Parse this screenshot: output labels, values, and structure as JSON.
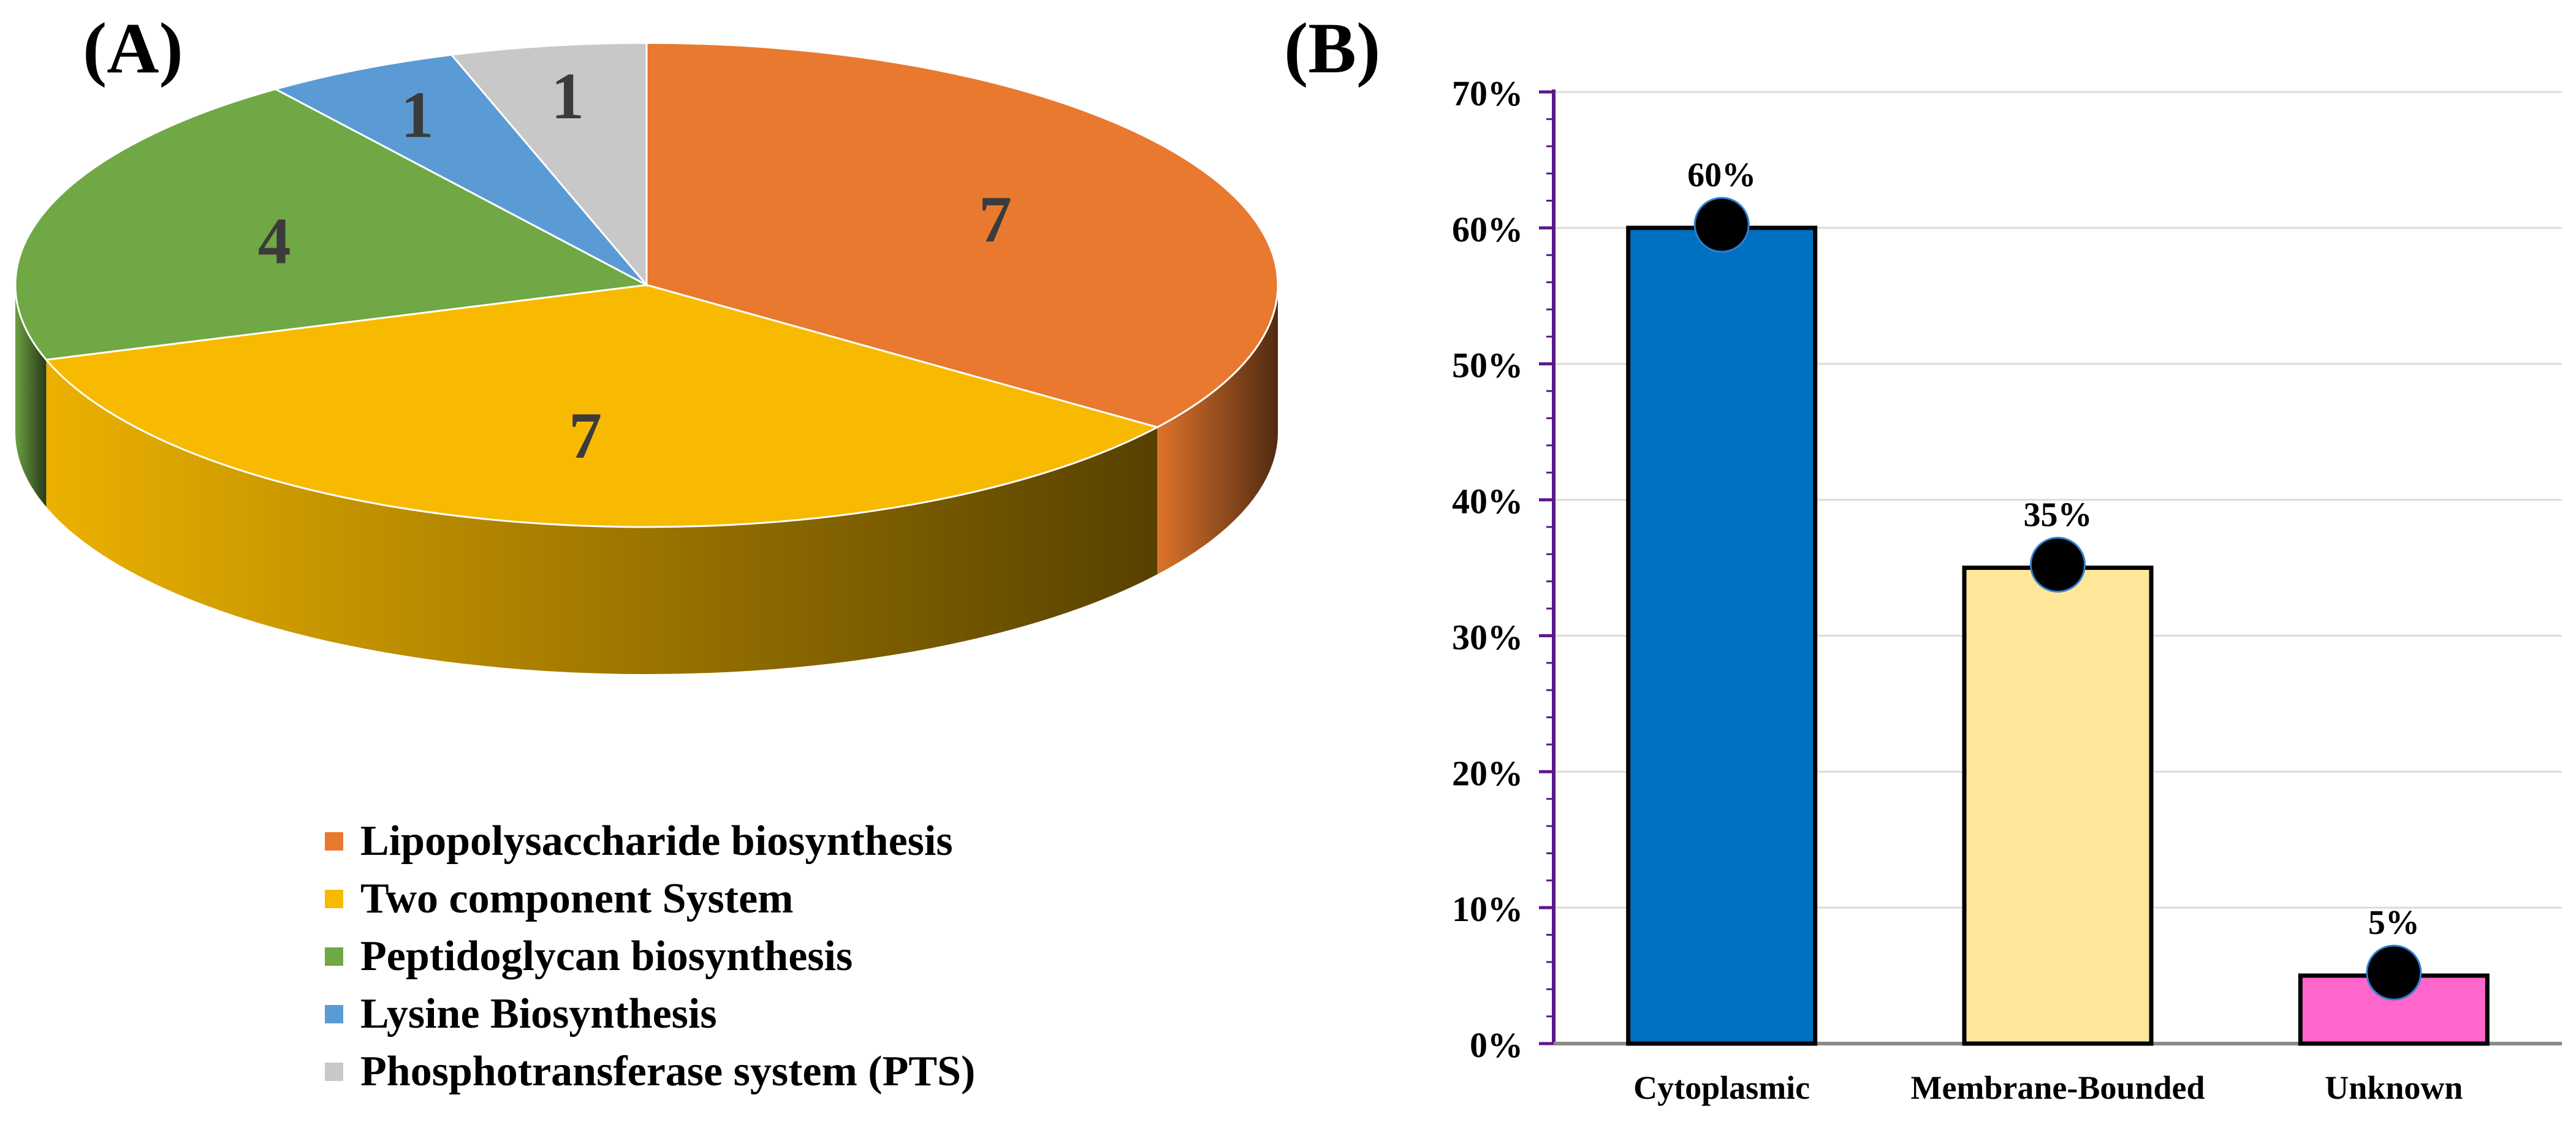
{
  "chart_data": [
    {
      "panel_label": "(A)",
      "type": "pie",
      "style": "3d",
      "slices": [
        {
          "label": "Lipopolysaccharide biosynthesis",
          "value": 7,
          "display": "7",
          "color": "#E8792F"
        },
        {
          "label": "Two component System",
          "value": 7,
          "display": "7",
          "color": "#F8BA00"
        },
        {
          "label": "Peptidoglycan biosynthesis",
          "value": 4,
          "display": "4",
          "color": "#70A845"
        },
        {
          "label": "Lysine Biosynthesis",
          "value": 1,
          "display": "1",
          "color": "#5B9BD5"
        },
        {
          "label": "Phosphotransferase system (PTS)",
          "value": 1,
          "display": "1",
          "color": "#C8C8C8"
        }
      ],
      "legend_position": "bottom"
    },
    {
      "panel_label": "(B)",
      "type": "bar",
      "categories": [
        "Cytoplasmic",
        "Membrane-Bounded",
        "Unknown"
      ],
      "values": [
        60,
        35,
        5
      ],
      "value_labels": [
        "60%",
        "35%",
        "5%"
      ],
      "bar_colors": [
        "#0070C0",
        "#FFE699",
        "#FF66CC"
      ],
      "marker_color": "#000000",
      "ylim": [
        0,
        70
      ],
      "yticks": [
        "0%",
        "10%",
        "20%",
        "30%",
        "40%",
        "50%",
        "60%",
        "70%"
      ],
      "grid": true,
      "xlabel": "",
      "ylabel": ""
    }
  ]
}
